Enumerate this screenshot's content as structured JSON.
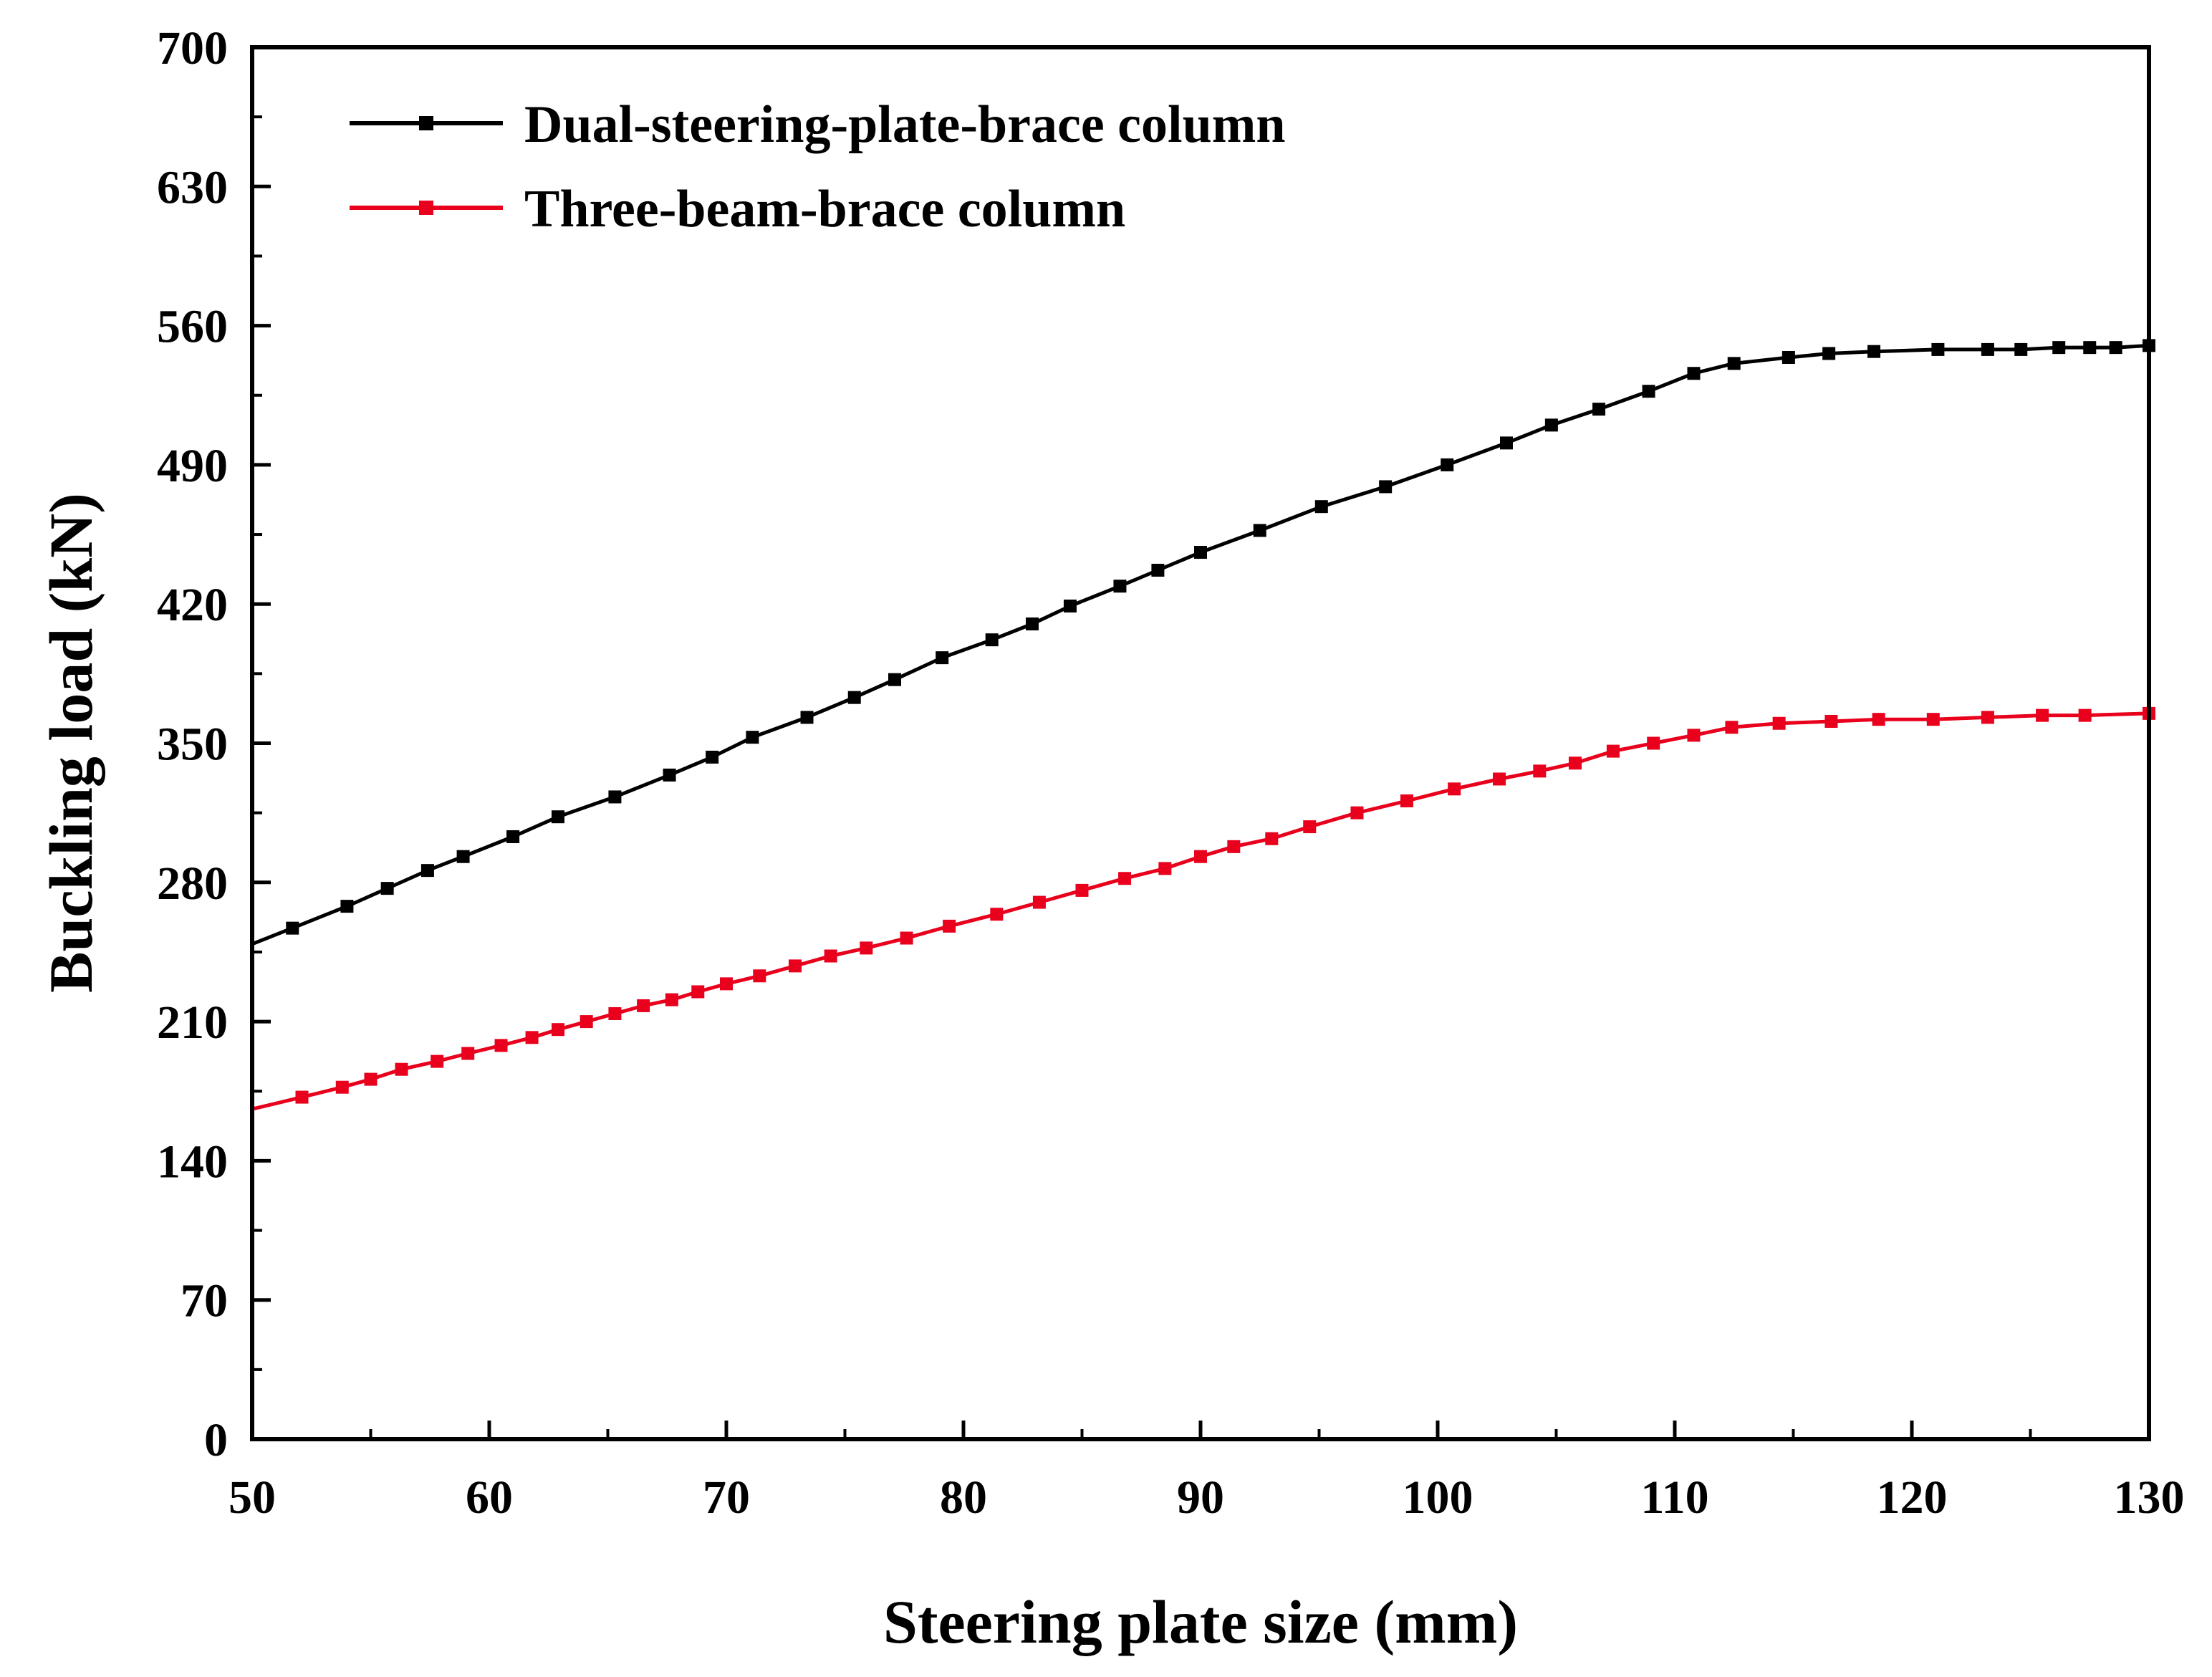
{
  "chart_data": {
    "type": "line",
    "title": "",
    "xlabel": "Steering plate size (mm)",
    "ylabel": "Buckling load (kN)",
    "xlim": [
      50,
      130
    ],
    "ylim": [
      0,
      700
    ],
    "xticks": [
      50,
      60,
      70,
      80,
      90,
      100,
      110,
      120,
      130
    ],
    "yticks": [
      0,
      70,
      140,
      210,
      280,
      350,
      420,
      490,
      560,
      630,
      700
    ],
    "grid": false,
    "legend_position": "top-left",
    "series": [
      {
        "name": "Dual-steering-plate-brace column",
        "color": "#000000",
        "marker": "square",
        "x": [
          50.0,
          51.7,
          54.0,
          55.7,
          57.4,
          58.9,
          61.0,
          62.9,
          65.3,
          67.6,
          69.4,
          71.1,
          73.4,
          75.4,
          77.1,
          79.1,
          81.2,
          82.9,
          84.5,
          86.6,
          88.2,
          90.0,
          92.5,
          95.1,
          97.8,
          100.4,
          102.9,
          104.8,
          106.8,
          108.9,
          110.8,
          112.5,
          114.8,
          116.5,
          118.4,
          121.1,
          123.2,
          124.6,
          126.2,
          127.5,
          128.6,
          130.0
        ],
        "y": [
          249,
          257,
          268,
          277,
          286,
          293,
          303,
          313,
          323,
          334,
          343,
          353,
          363,
          373,
          382,
          393,
          402,
          410,
          419,
          429,
          437,
          446,
          457,
          469,
          479,
          490,
          501,
          510,
          518,
          527,
          536,
          541,
          544,
          546,
          547,
          548,
          548,
          548,
          549,
          549,
          549,
          550
        ],
        "markers_x": [
          51.7,
          54.0,
          55.7,
          57.4,
          58.9,
          61.0,
          62.9,
          65.3,
          67.6,
          69.4,
          71.1,
          73.4,
          75.4,
          77.1,
          79.1,
          81.2,
          82.9,
          84.5,
          86.6,
          88.2,
          90.0,
          92.5,
          95.1,
          97.8,
          100.4,
          102.9,
          104.8,
          106.8,
          108.9,
          110.8,
          112.5,
          114.8,
          116.5,
          118.4,
          121.1,
          123.2,
          124.6,
          126.2,
          127.5,
          128.6,
          130.0
        ]
      },
      {
        "name": "Three-beam-brace column",
        "color": "#e8001c",
        "marker": "square",
        "x": [
          50.0,
          52.1,
          53.8,
          55.0,
          56.3,
          57.8,
          59.1,
          60.5,
          61.8,
          62.9,
          64.1,
          65.3,
          66.5,
          67.7,
          68.8,
          70.0,
          71.4,
          72.9,
          74.4,
          75.9,
          77.6,
          79.4,
          81.4,
          83.2,
          85.0,
          86.8,
          88.5,
          90.0,
          91.4,
          93.0,
          94.6,
          96.6,
          98.7,
          100.7,
          102.6,
          104.3,
          105.8,
          107.4,
          109.1,
          110.8,
          112.4,
          114.4,
          116.6,
          118.6,
          120.9,
          123.2,
          125.5,
          127.3,
          130.0
        ],
        "y": [
          166,
          172,
          177,
          181,
          186,
          190,
          194,
          198,
          202,
          206,
          210,
          214,
          218,
          221,
          225,
          229,
          233,
          238,
          243,
          247,
          252,
          258,
          264,
          270,
          276,
          282,
          287,
          293,
          298,
          302,
          308,
          315,
          321,
          327,
          332,
          336,
          340,
          346,
          350,
          354,
          358,
          360,
          361,
          362,
          362,
          363,
          364,
          364,
          365
        ],
        "markers_x": [
          52.1,
          53.8,
          55.0,
          56.3,
          57.8,
          59.1,
          60.5,
          61.8,
          62.9,
          64.1,
          65.3,
          66.5,
          67.7,
          68.8,
          70.0,
          71.4,
          72.9,
          74.4,
          75.9,
          77.6,
          79.4,
          81.4,
          83.2,
          85.0,
          86.8,
          88.5,
          90.0,
          91.4,
          93.0,
          94.6,
          96.6,
          98.7,
          100.7,
          102.6,
          104.3,
          105.8,
          107.4,
          109.1,
          110.8,
          112.4,
          114.4,
          116.6,
          118.6,
          120.9,
          123.2,
          125.5,
          127.3,
          130.0
        ]
      }
    ]
  }
}
